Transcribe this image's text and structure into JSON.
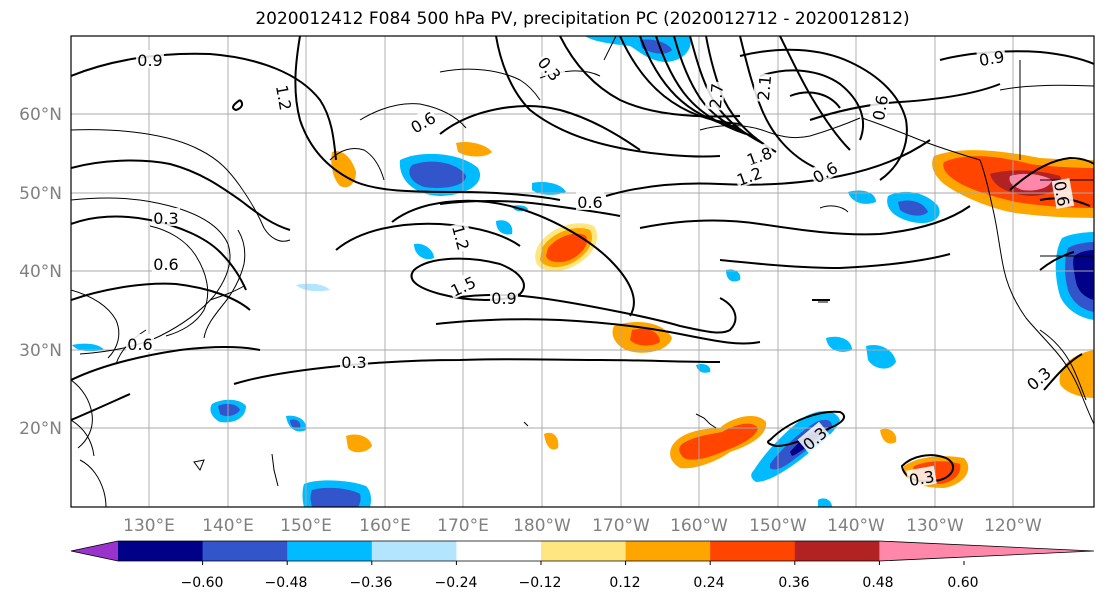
{
  "title": "2020012412 F084 500 hPa PV, precipitation PC (2020012712 - 2020012812)",
  "map": {
    "lat_labels": [
      "60°N",
      "50°N",
      "40°N",
      "30°N",
      "20°N"
    ],
    "lon_labels": [
      "130°E",
      "140°E",
      "150°E",
      "160°E",
      "170°E",
      "180°W",
      "170°W",
      "160°W",
      "150°W",
      "140°W",
      "130°W",
      "120°W"
    ],
    "grid": true
  },
  "pv_contour_labels": [
    "0.9",
    "1.2",
    "0.3",
    "0.6",
    "0.6",
    "0.3",
    "0.6",
    "1.2",
    "1.5",
    "0.9",
    "0.3",
    "0.6",
    "2.7",
    "2.1",
    "1.8",
    "1.2",
    "0.6",
    "0.6",
    "0.9",
    "0.6",
    "0.3",
    "0.3",
    "0.3"
  ],
  "colorbar": {
    "ticks": [
      "−0.60",
      "−0.48",
      "−0.36",
      "−0.24",
      "−0.12",
      "0.12",
      "0.24",
      "0.36",
      "0.48",
      "0.60"
    ],
    "colors": [
      "#9933cc",
      "#000088",
      "#3355cc",
      "#00bbff",
      "#b3e5ff",
      "#ffffff",
      "#ffe680",
      "#ffa500",
      "#ff4500",
      "#b22222",
      "#ff88aa"
    ]
  }
}
